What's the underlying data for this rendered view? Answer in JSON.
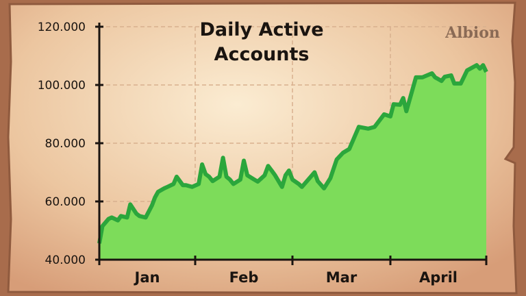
{
  "chart_data": {
    "type": "area",
    "title": [
      "Daily Active",
      "Accounts"
    ],
    "xlabel": "",
    "ylabel": "",
    "ylim": [
      40000,
      120000
    ],
    "yticks": [
      40000,
      60000,
      80000,
      100000,
      120000
    ],
    "ytick_labels": [
      "40.000",
      "60.000",
      "80.000",
      "100.000",
      "120.000"
    ],
    "month_labels": [
      "Jan",
      "Feb",
      "Mar",
      "April"
    ],
    "grid": true,
    "legend": "none",
    "colors": {
      "line": "#2ba63c",
      "fill": "#7ddc5a",
      "background": "#f3d9b8",
      "frame": "#a86c4c"
    },
    "series": [
      {
        "x": [
          "01-01",
          "01-02",
          "01-04",
          "01-05",
          "01-07",
          "01-08",
          "01-10",
          "01-11",
          "01-13",
          "01-14",
          "01-16",
          "01-18",
          "01-19",
          "01-20",
          "01-22",
          "01-23",
          "01-25",
          "01-26",
          "01-28",
          "01-29",
          "01-31",
          "02-02",
          "02-03",
          "02-04",
          "02-05",
          "02-06",
          "02-08",
          "02-09",
          "02-10",
          "02-11",
          "02-12",
          "02-14",
          "02-15",
          "02-16",
          "02-18",
          "02-19",
          "02-21",
          "02-22",
          "02-23",
          "02-24",
          "02-26",
          "02-27",
          "02-28",
          "03-01",
          "03-03",
          "03-04",
          "03-06",
          "03-08",
          "03-09",
          "03-11",
          "03-13",
          "03-15",
          "03-17",
          "03-19",
          "03-22",
          "03-25",
          "03-27",
          "03-30",
          "04-01",
          "04-02",
          "04-04",
          "04-05",
          "04-06",
          "04-09",
          "04-11",
          "04-14",
          "04-15",
          "04-17",
          "04-18",
          "04-20",
          "04-21",
          "04-23",
          "04-25",
          "04-28",
          "04-29",
          "04-30",
          "05-01"
        ],
        "values": [
          45600,
          51500,
          54000,
          54500,
          53500,
          55000,
          54500,
          59000,
          55800,
          55000,
          54500,
          58600,
          61400,
          63300,
          64500,
          65000,
          66000,
          68500,
          65600,
          65600,
          65000,
          66000,
          72700,
          69400,
          68500,
          67000,
          68500,
          75000,
          68500,
          67500,
          66000,
          67500,
          74000,
          69000,
          67500,
          66800,
          69000,
          72200,
          70600,
          69000,
          65000,
          69000,
          70600,
          67500,
          66000,
          65000,
          67500,
          70000,
          67000,
          64500,
          68000,
          74400,
          76700,
          78000,
          85600,
          85000,
          85600,
          89900,
          89200,
          93400,
          93200,
          95500,
          91000,
          102600,
          102600,
          104000,
          102600,
          101400,
          102800,
          103300,
          100500,
          100500,
          105000,
          106800,
          105600,
          106800,
          104500
        ]
      }
    ],
    "logo_text": "Albion"
  }
}
